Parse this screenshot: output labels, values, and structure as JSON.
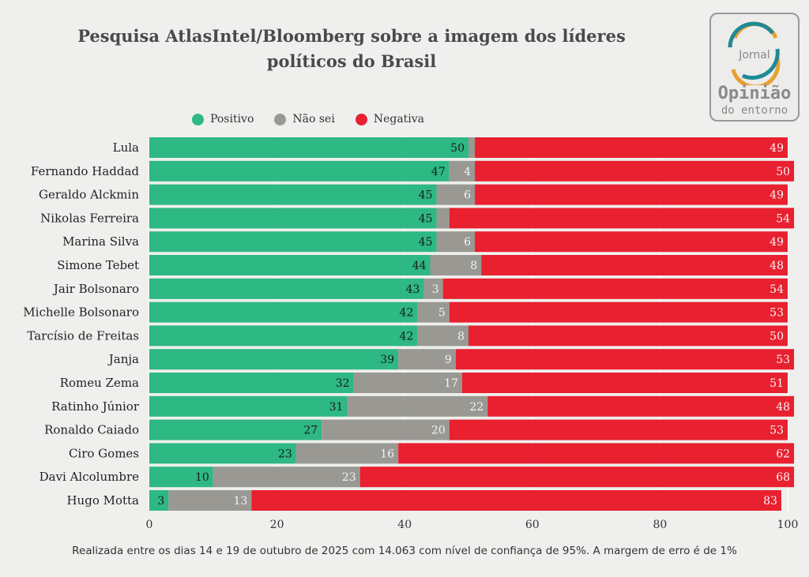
{
  "logo": {
    "small": "Jornal",
    "big": "Opinião",
    "sub": "do entorno"
  },
  "footer": "Realizada entre os dias 14 e 19 de outubro de 2025 com 14.063 com nível de confiança de 95%. A margem de erro é de 1%",
  "chart_data": {
    "type": "bar",
    "orientation": "horizontal-stacked",
    "title_lines": [
      "Pesquisa AtlasIntel/Bloomberg sobre a imagem dos líderes",
      "políticos do Brasil"
    ],
    "legend": [
      "Positivo",
      "Não sei",
      "Negativa"
    ],
    "legend_placement": "top",
    "colors": {
      "Positivo": "#2eb883",
      "Não sei": "#999893",
      "Negativa": "#e8202f"
    },
    "xlim": [
      0,
      100
    ],
    "xticks": [
      0,
      20,
      40,
      60,
      80,
      100
    ],
    "categories": [
      "Lula",
      "Fernando Haddad",
      "Geraldo Alckmin",
      "Nikolas Ferreira",
      "Marina Silva",
      "Simone Tebet",
      "Jair Bolsonaro",
      "Michelle Bolsonaro",
      "Tarcísio de Freitas",
      "Janja",
      "Romeu Zema",
      "Ratinho Júnior",
      "Ronaldo Caiado",
      "Ciro Gomes",
      "Davi Alcolumbre",
      "Hugo Motta"
    ],
    "series": [
      {
        "name": "Positivo",
        "values": [
          50,
          47,
          45,
          45,
          45,
          44,
          43,
          42,
          42,
          39,
          32,
          31,
          27,
          23,
          10,
          3
        ]
      },
      {
        "name": "Não sei",
        "values": [
          1,
          4,
          6,
          2,
          6,
          8,
          3,
          5,
          8,
          9,
          17,
          22,
          20,
          16,
          23,
          13
        ]
      },
      {
        "name": "Negativa",
        "values": [
          49,
          50,
          49,
          54,
          49,
          48,
          54,
          53,
          50,
          53,
          51,
          48,
          53,
          62,
          68,
          83
        ]
      }
    ],
    "labeled": {
      "Não sei": [
        false,
        true,
        true,
        false,
        true,
        true,
        true,
        true,
        true,
        true,
        true,
        true,
        true,
        true,
        true,
        true
      ]
    }
  }
}
